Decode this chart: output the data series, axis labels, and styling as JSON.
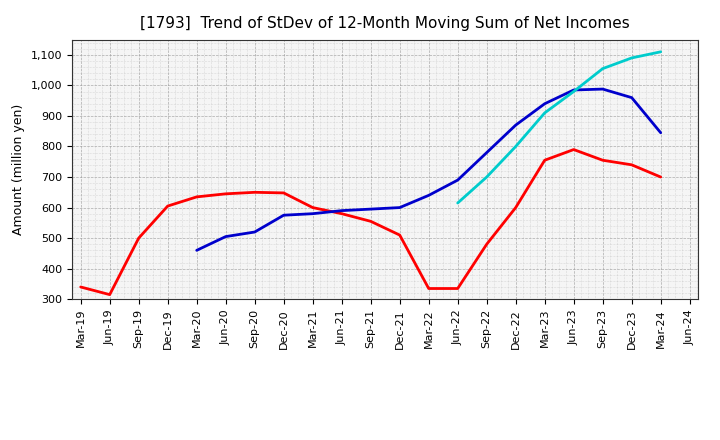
{
  "title": "[1793]  Trend of StDev of 12-Month Moving Sum of Net Incomes",
  "ylabel": "Amount (million yen)",
  "ylim": [
    300,
    1150
  ],
  "yticks": [
    300,
    400,
    500,
    600,
    700,
    800,
    900,
    1000,
    1100
  ],
  "background_color": "#ffffff",
  "plot_bg_color": "#f5f5f5",
  "grid_color": "#aaaaaa",
  "x_labels": [
    "Mar-19",
    "Jun-19",
    "Sep-19",
    "Dec-19",
    "Mar-20",
    "Jun-20",
    "Sep-20",
    "Dec-20",
    "Mar-21",
    "Jun-21",
    "Sep-21",
    "Dec-21",
    "Mar-22",
    "Jun-22",
    "Sep-22",
    "Dec-22",
    "Mar-23",
    "Jun-23",
    "Sep-23",
    "Dec-23",
    "Mar-24",
    "Jun-24"
  ],
  "series": {
    "3 Years": {
      "color": "#ff0000",
      "linewidth": 2.0,
      "data": [
        340,
        315,
        500,
        605,
        635,
        645,
        650,
        648,
        600,
        580,
        555,
        510,
        335,
        335,
        480,
        600,
        755,
        790,
        755,
        740,
        700,
        null
      ]
    },
    "5 Years": {
      "color": "#0000cc",
      "linewidth": 2.0,
      "data": [
        null,
        null,
        null,
        null,
        460,
        505,
        520,
        575,
        580,
        590,
        595,
        600,
        640,
        690,
        780,
        870,
        940,
        985,
        988,
        960,
        845,
        null
      ]
    },
    "7 Years": {
      "color": "#00cccc",
      "linewidth": 2.0,
      "data": [
        null,
        null,
        null,
        null,
        null,
        null,
        null,
        null,
        null,
        null,
        null,
        null,
        null,
        615,
        700,
        800,
        910,
        980,
        1055,
        1090,
        1110,
        null
      ]
    },
    "10 Years": {
      "color": "#008000",
      "linewidth": 2.0,
      "data": [
        null,
        null,
        null,
        null,
        null,
        null,
        null,
        null,
        null,
        null,
        null,
        null,
        null,
        null,
        null,
        null,
        null,
        null,
        null,
        null,
        null,
        null
      ]
    }
  },
  "title_fontsize": 11,
  "title_fontweight": "normal",
  "ylabel_fontsize": 9,
  "tick_fontsize": 8,
  "legend_fontsize": 9
}
